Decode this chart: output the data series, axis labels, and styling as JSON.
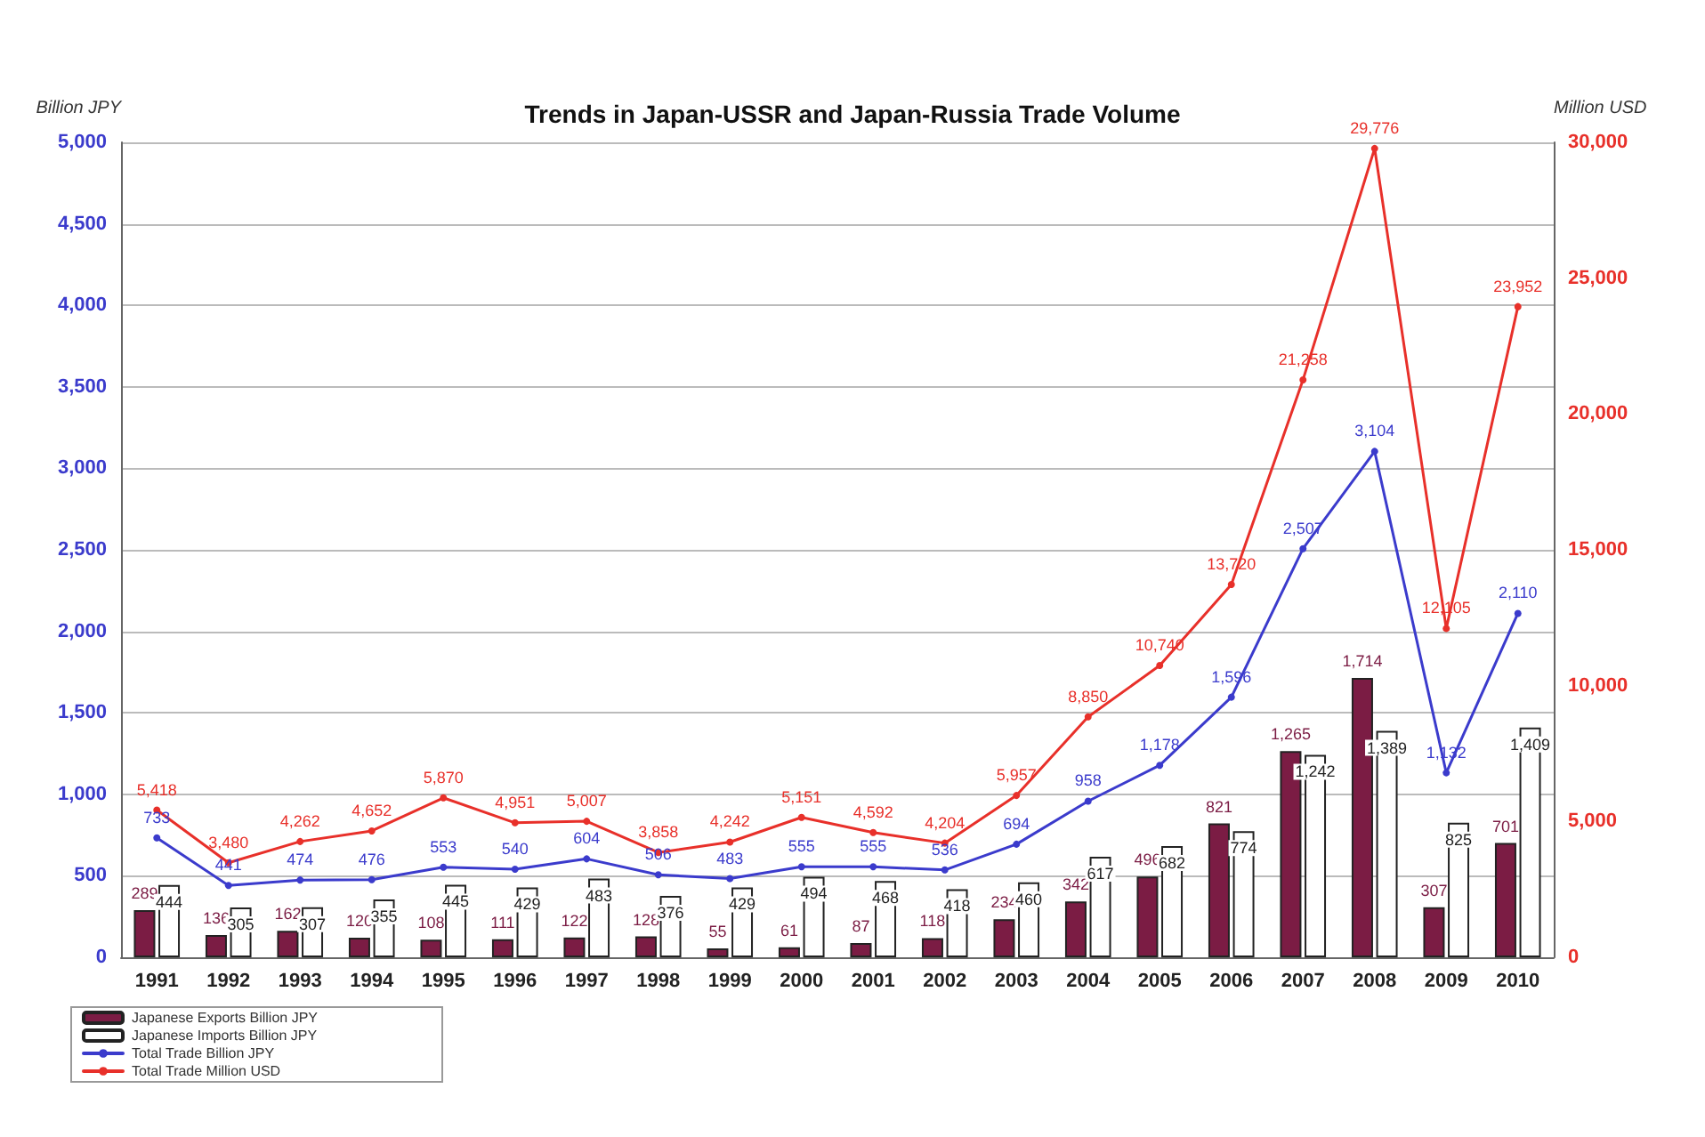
{
  "chart_data": {
    "type": "bar",
    "title": "Trends in Japan-USSR and Japan-Russia Trade Volume",
    "ylabel": "Billion JPY",
    "y2label": "Million USD",
    "categories": [
      "1991",
      "1992",
      "1993",
      "1994",
      "1995",
      "1996",
      "1997",
      "1998",
      "1999",
      "2000",
      "2001",
      "2002",
      "2003",
      "2004",
      "2005",
      "2006",
      "2007",
      "2008",
      "2009",
      "2010"
    ],
    "series": [
      {
        "name": "Japanese Exports Billion JPY",
        "color": "#7b1c44",
        "values": [
          289,
          136,
          162,
          120,
          108,
          111,
          122,
          128,
          55,
          61,
          87,
          118,
          234,
          342,
          496,
          821,
          1265,
          1714,
          307,
          701
        ],
        "value_labels": [
          "289",
          "136",
          "162",
          "120",
          "108",
          "111",
          "122",
          "128",
          "55",
          "61",
          "87",
          "118",
          "234",
          "342",
          "496",
          "821",
          "1,265",
          "1,714",
          "307",
          "701"
        ]
      },
      {
        "name": "Japanese Imports Billion JPY",
        "color": "#ffffff",
        "values": [
          444,
          305,
          307,
          355,
          445,
          429,
          483,
          376,
          429,
          494,
          468,
          418,
          460,
          617,
          682,
          774,
          1242,
          1389,
          825,
          1409
        ],
        "value_labels": [
          "444",
          "305",
          "307",
          "355",
          "445",
          "429",
          "483",
          "376",
          "429",
          "494",
          "468",
          "418",
          "460",
          "617",
          "682",
          "774",
          "1,242",
          "1,389",
          "825",
          "1,409"
        ]
      },
      {
        "name": "Total Trade Billion JPY",
        "type": "line",
        "color": "#3b3bcc",
        "values": [
          733,
          441,
          474,
          476,
          553,
          540,
          604,
          506,
          483,
          555,
          555,
          536,
          694,
          958,
          1178,
          1596,
          2507,
          3104,
          1132,
          2110
        ],
        "value_labels": [
          "733",
          "441",
          "474",
          "476",
          "553",
          "540",
          "604",
          "506",
          "483",
          "555",
          "555",
          "536",
          "694",
          "958",
          "1,178",
          "1,596",
          "2,507",
          "3,104",
          "1,132",
          "2,110"
        ]
      },
      {
        "name": "Total Trade Million USD",
        "type": "line",
        "axis": "y2",
        "color": "#e8302a",
        "values": [
          5418,
          3480,
          4262,
          4652,
          5870,
          4951,
          5007,
          3858,
          4242,
          5151,
          4592,
          4204,
          5957,
          8850,
          10740,
          13720,
          21258,
          29776,
          12105,
          23952
        ],
        "value_labels": [
          "5,418",
          "3,480",
          "4,262",
          "4,652",
          "5,870",
          "4,951",
          "5,007",
          "3,858",
          "4,242",
          "5,151",
          "4,592",
          "4,204",
          "5,957",
          "8,850",
          "10,740",
          "13,720",
          "21,258",
          "29,776",
          "12,105",
          "23,952"
        ]
      }
    ],
    "ylim": [
      0,
      5000
    ],
    "yticks": [
      0,
      500,
      {
        "value": 1000,
        "label": "1,000"
      },
      {
        "value": 1500,
        "label": "1,500"
      },
      {
        "value": 2000,
        "label": "2,000"
      },
      {
        "value": 2500,
        "label": "2,500"
      },
      {
        "value": 3000,
        "label": "3,000"
      },
      {
        "value": 3500,
        "label": "3,500"
      },
      {
        "value": 4000,
        "label": "4,000"
      },
      {
        "value": 4500,
        "label": "4,500"
      },
      {
        "value": 5000,
        "label": "5,000"
      }
    ],
    "y2lim": [
      0,
      30000
    ],
    "y2ticks": [
      0,
      {
        "value": 5000,
        "label": "5,000"
      },
      {
        "value": 10000,
        "label": "10,000"
      },
      {
        "value": 15000,
        "label": "15,000"
      },
      {
        "value": 20000,
        "label": "20,000"
      },
      {
        "value": 25000,
        "label": "25,000"
      },
      {
        "value": 30000,
        "label": "30,000"
      }
    ],
    "grid": "y",
    "legend": "bottom left",
    "marker": "circle"
  }
}
